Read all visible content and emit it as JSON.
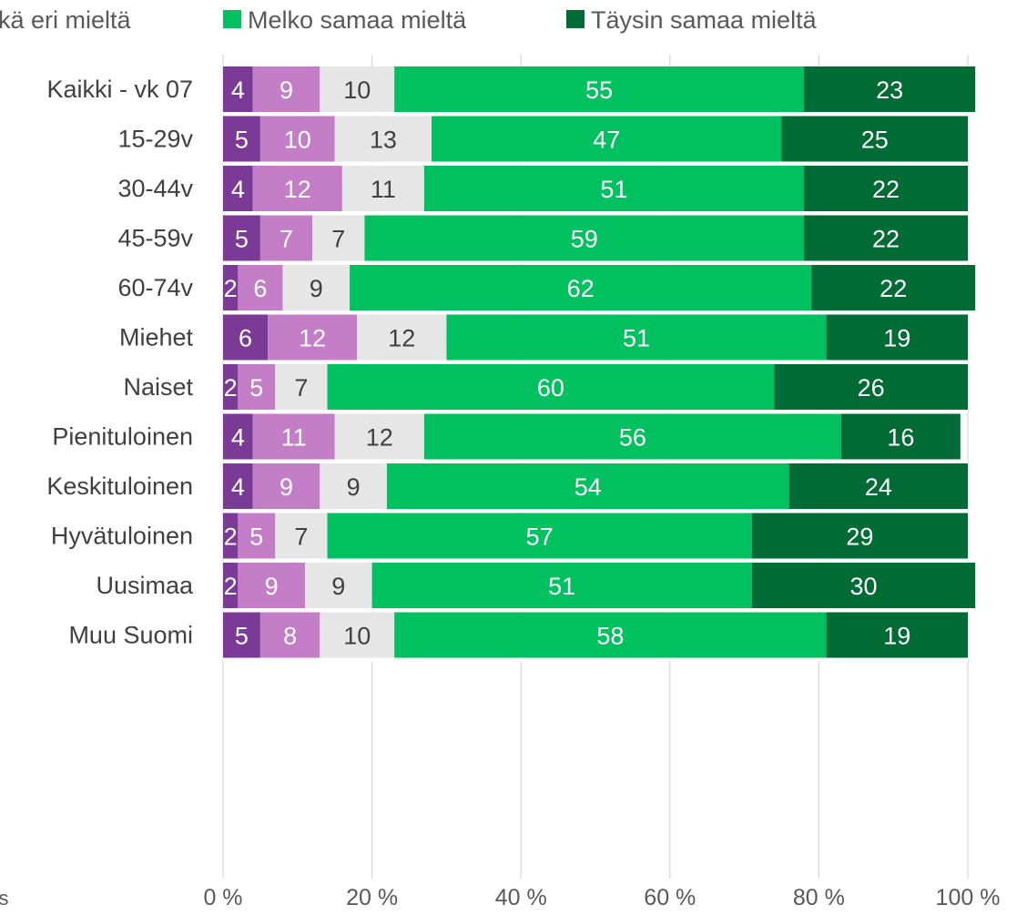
{
  "chart_data": {
    "type": "bar",
    "orientation": "horizontal",
    "stacked": "percent",
    "legend_position": "top",
    "grid": true,
    "xlim": [
      0,
      100
    ],
    "x_ticks": [
      "0 %",
      "20 %",
      "40 %",
      "60 %",
      "80 %",
      "100 %"
    ],
    "legend_partial": [
      {
        "text": "kä eri mieltä",
        "color": "#e6e6e6"
      }
    ],
    "legend": [
      {
        "text": "Melko samaa mieltä",
        "color": "#00c060"
      },
      {
        "text": "Täysin samaa mieltä",
        "color": "#006b35"
      }
    ],
    "series": [
      {
        "color": "#7b3a96",
        "label_color": "#ffffff"
      },
      {
        "color": "#c47ec7",
        "label_color": "#ffffff"
      },
      {
        "color": "#e6e6e6",
        "label_color": "#404040"
      },
      {
        "name": "Melko samaa mieltä",
        "color": "#00c060",
        "label_color": "#ffffff"
      },
      {
        "name": "Täysin samaa mieltä",
        "color": "#006b35",
        "label_color": "#ffffff"
      }
    ],
    "groups": [
      {
        "rows": [
          {
            "label": "Kaikki - vk 07",
            "values": [
              4,
              9,
              10,
              55,
              23
            ]
          }
        ]
      },
      {
        "rows": [
          {
            "label": "15-29v",
            "values": [
              5,
              10,
              13,
              47,
              25
            ]
          },
          {
            "label": "30-44v",
            "values": [
              4,
              12,
              11,
              51,
              22
            ]
          },
          {
            "label": "45-59v",
            "values": [
              5,
              7,
              7,
              59,
              22
            ]
          },
          {
            "label": "60-74v",
            "values": [
              2,
              6,
              9,
              62,
              22
            ]
          }
        ]
      },
      {
        "rows": [
          {
            "label": "Miehet",
            "values": [
              6,
              12,
              12,
              51,
              19
            ]
          },
          {
            "label": "Naiset",
            "values": [
              2,
              5,
              7,
              60,
              26
            ]
          }
        ]
      },
      {
        "rows": [
          {
            "label": "Pienituloinen",
            "values": [
              4,
              11,
              12,
              56,
              16
            ]
          },
          {
            "label": "Keskituloinen",
            "values": [
              4,
              9,
              9,
              54,
              24
            ]
          },
          {
            "label": "Hyvätuloinen",
            "values": [
              2,
              5,
              7,
              57,
              29
            ]
          }
        ]
      },
      {
        "rows": [
          {
            "label": "Uusimaa",
            "values": [
              2,
              9,
              9,
              51,
              30
            ]
          },
          {
            "label": "Muu Suomi",
            "values": [
              5,
              8,
              10,
              58,
              19
            ]
          }
        ]
      }
    ],
    "footnote_fragment": "’s"
  }
}
